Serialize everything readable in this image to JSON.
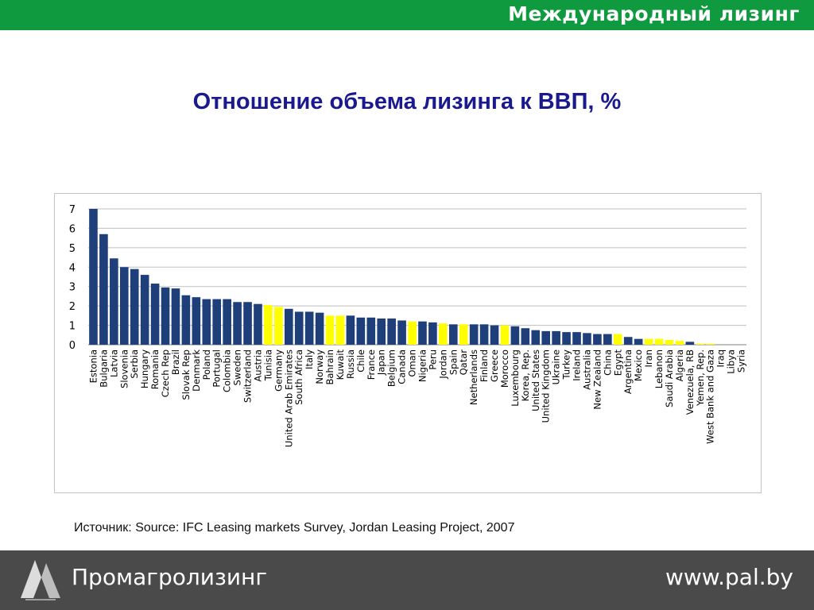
{
  "header": {
    "brand": "Международный лизинг"
  },
  "title": "Отношение объема лизинга к ВВП, %",
  "source": "Источник: Source: IFC Leasing markets Survey, Jordan Leasing Project, 2007",
  "footer": {
    "company": "Промагролизинг",
    "url": "www.pal.by"
  },
  "colors": {
    "top_bar": "#0f9a3f",
    "bottom_bar": "#4a4a4a",
    "title": "#1a1a8e",
    "bar_blue": "#1f3f7a",
    "bar_yellow": "#ffff00"
  },
  "chart_data": {
    "type": "bar",
    "title": "",
    "xlabel": "",
    "ylabel": "",
    "ylim": [
      0,
      7
    ],
    "yticks": [
      0,
      1,
      2,
      3,
      4,
      5,
      6,
      7
    ],
    "grid": true,
    "categories": [
      "Estonia",
      "Bulgaria",
      "Latvia",
      "Slovenia",
      "Serbia",
      "Hungary",
      "Romania",
      "Czech Rep",
      "Brazil",
      "Slovak Rep",
      "Denmark",
      "Poland",
      "Portugal",
      "Colombia",
      "Sweden",
      "Switzerland",
      "Austria",
      "Tunisia",
      "Germany",
      "United Arab Emirates",
      "South Africa",
      "Italy",
      "Norway",
      "Bahrain",
      "Kuwait",
      "Russia",
      "Chile",
      "France",
      "Japan",
      "Belgium",
      "Canada",
      "Oman",
      "Nigeria",
      "Peru",
      "Jordan",
      "Spain",
      "Qatar",
      "Netherlands",
      "Finland",
      "Greece",
      "Morocco",
      "Luxembourg",
      "Korea, Rep.",
      "United States",
      "United Kingdom",
      "Ukraine",
      "Turkey",
      "Ireland",
      "Australia",
      "New Zealand",
      "China",
      "Egypt",
      "Argentina",
      "Mexico",
      "Iran",
      "Lebanon",
      "Saudi Arabia",
      "Algeria",
      "Venezuela, RB",
      "Yemen, Rep.",
      "West Bank and Gaza",
      "Iraq",
      "Libya",
      "Syria"
    ],
    "values": [
      7.0,
      5.7,
      4.45,
      4.0,
      3.9,
      3.6,
      3.15,
      2.95,
      2.9,
      2.55,
      2.45,
      2.35,
      2.35,
      2.35,
      2.2,
      2.2,
      2.1,
      2.05,
      1.95,
      1.85,
      1.7,
      1.7,
      1.65,
      1.5,
      1.5,
      1.5,
      1.4,
      1.4,
      1.35,
      1.35,
      1.25,
      1.2,
      1.2,
      1.15,
      1.1,
      1.05,
      1.05,
      1.05,
      1.05,
      1.0,
      1.0,
      0.95,
      0.85,
      0.75,
      0.7,
      0.7,
      0.65,
      0.65,
      0.6,
      0.55,
      0.55,
      0.55,
      0.4,
      0.3,
      0.3,
      0.3,
      0.25,
      0.2,
      0.15,
      0.05,
      0.05,
      0.0,
      0.0,
      0.0
    ],
    "highlight": [
      "Tunisia",
      "Germany",
      "Bahrain",
      "Kuwait",
      "Oman",
      "Jordan",
      "Qatar",
      "Morocco",
      "Egypt",
      "Iran",
      "Lebanon",
      "Saudi Arabia",
      "Algeria",
      "Yemen, Rep.",
      "West Bank and Gaza",
      "Iraq",
      "Libya",
      "Syria"
    ]
  }
}
